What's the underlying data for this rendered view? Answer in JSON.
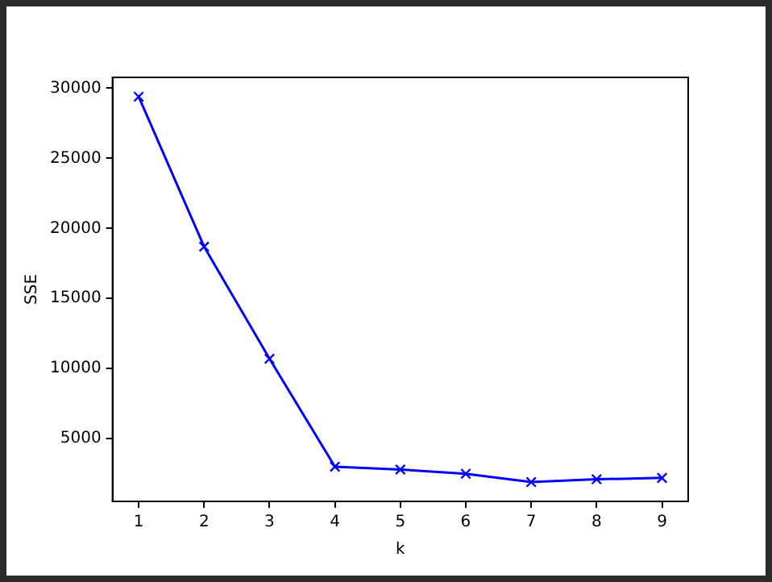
{
  "chart_data": {
    "type": "line",
    "xlabel": "k",
    "ylabel": "SSE",
    "x": [
      1,
      2,
      3,
      4,
      5,
      6,
      7,
      8,
      9
    ],
    "series": [
      {
        "color": "#0000ff",
        "values": [
          29400,
          18700,
          10700,
          3000,
          2800,
          2500,
          1900,
          2100,
          2200
        ]
      }
    ],
    "xlim": [
      0.6,
      9.4
    ],
    "xticks": [
      1,
      2,
      3,
      4,
      5,
      6,
      7,
      8,
      9
    ],
    "ylim": [
      525,
      30775
    ],
    "yticks": [
      5000,
      10000,
      15000,
      20000,
      25000,
      30000
    ],
    "marker": "cross",
    "line_style": "solid",
    "grid": false,
    "legend": false
  }
}
